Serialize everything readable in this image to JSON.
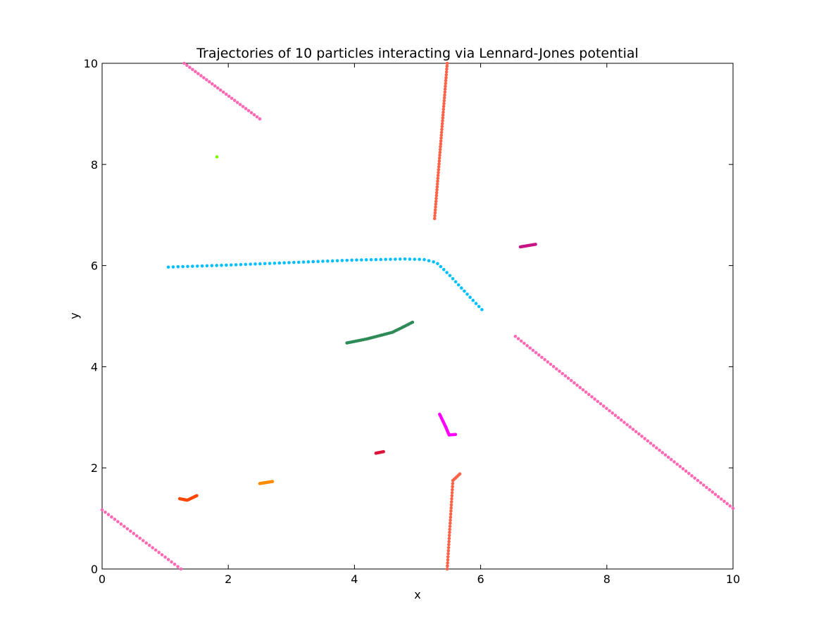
{
  "chart_data": {
    "type": "scatter",
    "title": "Trajectories of 10 particles interacting via Lennard-Jones potential",
    "xlabel": "x",
    "ylabel": "y",
    "xlim": [
      0,
      10
    ],
    "ylim": [
      0,
      10
    ],
    "xticks": [
      0,
      2,
      4,
      6,
      8,
      10
    ],
    "yticks": [
      0,
      2,
      4,
      6,
      8,
      10
    ],
    "grid": false,
    "legend": "none",
    "series": [
      {
        "color": "#ff69b4",
        "segments": [
          {
            "from": [
              1.3,
              10.0
            ],
            "to": [
              2.5,
              8.9
            ],
            "n": 28
          },
          {
            "from": [
              6.55,
              4.6
            ],
            "to": [
              10.0,
              1.2
            ],
            "n": 75
          },
          {
            "from": [
              0.0,
              1.17
            ],
            "to": [
              1.25,
              0.0
            ],
            "n": 26
          }
        ]
      },
      {
        "color": "#00bfff",
        "polyline": [
          [
            1.05,
            5.97
          ],
          [
            2.0,
            6.01
          ],
          [
            3.0,
            6.06
          ],
          [
            4.0,
            6.11
          ],
          [
            4.8,
            6.13
          ],
          [
            5.1,
            6.12
          ],
          [
            5.3,
            6.06
          ],
          [
            5.5,
            5.82
          ],
          [
            5.7,
            5.55
          ],
          [
            5.85,
            5.35
          ],
          [
            6.02,
            5.13
          ]
        ],
        "n": 72
      },
      {
        "color": "#2e8b57",
        "polyline": [
          [
            3.88,
            4.47
          ],
          [
            4.2,
            4.55
          ],
          [
            4.6,
            4.68
          ],
          [
            4.78,
            4.79
          ],
          [
            4.92,
            4.88
          ]
        ],
        "n": 40
      },
      {
        "color": "#ff6347",
        "segments": [
          {
            "from": [
              5.27,
              6.93
            ],
            "to": [
              5.47,
              10.0
            ],
            "n": 55
          },
          {
            "from": [
              5.47,
              0.0
            ],
            "to": [
              5.56,
              1.75
            ],
            "n": 30
          },
          {
            "from": [
              5.56,
              1.75
            ],
            "to": [
              5.67,
              1.88
            ],
            "n": 6
          }
        ]
      },
      {
        "color": "#c71585",
        "polyline": [
          [
            6.63,
            6.37
          ],
          [
            6.87,
            6.42
          ]
        ],
        "n": 12
      },
      {
        "color": "#ff00ff",
        "polyline": [
          [
            5.35,
            3.06
          ],
          [
            5.45,
            2.8
          ],
          [
            5.5,
            2.65
          ],
          [
            5.6,
            2.66
          ]
        ],
        "n": 22
      },
      {
        "color": "#dc143c",
        "polyline": [
          [
            4.34,
            2.29
          ],
          [
            4.46,
            2.32
          ]
        ],
        "n": 8
      },
      {
        "color": "#ff8c00",
        "polyline": [
          [
            2.5,
            1.69
          ],
          [
            2.7,
            1.73
          ]
        ],
        "n": 12
      },
      {
        "color": "#ff4500",
        "polyline": [
          [
            1.23,
            1.39
          ],
          [
            1.35,
            1.36
          ],
          [
            1.5,
            1.45
          ]
        ],
        "n": 16
      },
      {
        "color": "#7cfc00",
        "polyline": [
          [
            1.82,
            8.15
          ]
        ],
        "n": 1
      }
    ]
  }
}
